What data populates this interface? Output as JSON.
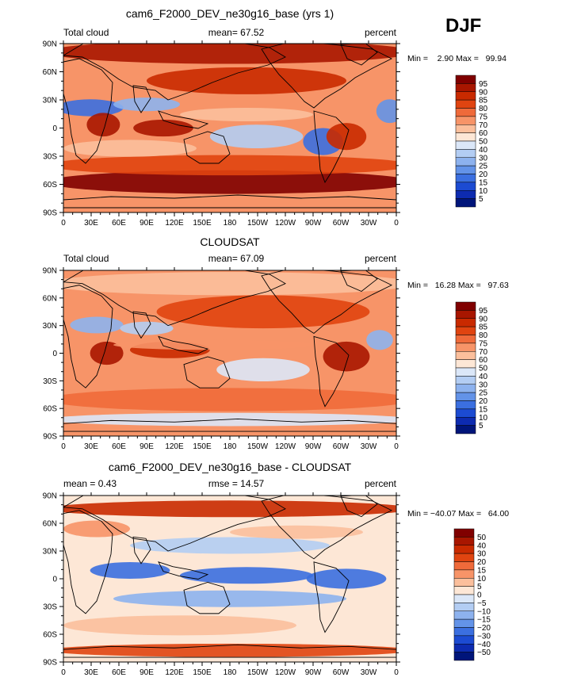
{
  "season": "DJF",
  "x_ticks": [
    "0",
    "30E",
    "60E",
    "90E",
    "120E",
    "150E",
    "180",
    "150W",
    "120W",
    "90W",
    "60W",
    "30W",
    "0"
  ],
  "y_ticks": [
    "90N",
    "60N",
    "30N",
    "0",
    "30S",
    "60S",
    "90S"
  ],
  "panels": [
    {
      "title": "cam6_F2000_DEV_ne30g16_base (yrs 1)",
      "left_label": "Total cloud",
      "center_label": "mean=  67.52",
      "right_label": "percent",
      "stats": "Min =    2.90 Max =   99.94",
      "colorbar": {
        "labels": [
          "95",
          "90",
          "85",
          "80",
          "75",
          "70",
          "60",
          "50",
          "40",
          "30",
          "25",
          "20",
          "15",
          "10",
          "5"
        ],
        "colors": [
          "#800000",
          "#a81600",
          "#c92a00",
          "#e04410",
          "#ef6a3a",
          "#f79468",
          "#fbbf9c",
          "#fde7d6",
          "#dbe7f8",
          "#b3cdf3",
          "#8db2ee",
          "#6393e8",
          "#3b6fe0",
          "#1c4bd2",
          "#0d2bb0",
          "#00157a"
        ]
      }
    },
    {
      "title": "CLOUDSAT",
      "left_label": "Total cloud",
      "center_label": "mean=  67.09",
      "right_label": "percent",
      "stats": "Min =   16.28 Max =   97.63",
      "colorbar": {
        "labels": [
          "95",
          "90",
          "85",
          "80",
          "75",
          "70",
          "60",
          "50",
          "40",
          "30",
          "25",
          "20",
          "15",
          "10",
          "5"
        ],
        "colors": [
          "#800000",
          "#a81600",
          "#c92a00",
          "#e04410",
          "#ef6a3a",
          "#f79468",
          "#fbbf9c",
          "#fde7d6",
          "#dbe7f8",
          "#b3cdf3",
          "#8db2ee",
          "#6393e8",
          "#3b6fe0",
          "#1c4bd2",
          "#0d2bb0",
          "#00157a"
        ]
      }
    },
    {
      "title": "cam6_F2000_DEV_ne30g16_base - CLOUDSAT",
      "left_label": "mean =    0.43",
      "center_label": "rmse =   14.57",
      "right_label": "percent",
      "stats": "Min = −40.07 Max =   64.00",
      "colorbar": {
        "labels": [
          "50",
          "40",
          "30",
          "20",
          "15",
          "10",
          "5",
          "0",
          "−5",
          "−10",
          "−15",
          "−20",
          "−30",
          "−40",
          "−50"
        ],
        "colors": [
          "#800000",
          "#a81600",
          "#c92a00",
          "#e04410",
          "#ef6a3a",
          "#f79468",
          "#fbbf9c",
          "#fde7d6",
          "#dbe7f8",
          "#b3cdf3",
          "#8db2ee",
          "#6393e8",
          "#3b6fe0",
          "#1c4bd2",
          "#0d2bb0",
          "#00157a"
        ]
      }
    }
  ],
  "chart_data": [
    {
      "type": "heatmap",
      "title": "cam6_F2000_DEV_ne30g16_base (yrs 1)",
      "variable": "Total cloud",
      "units": "percent",
      "mean": 67.52,
      "min": 2.9,
      "max": 99.94,
      "levels": [
        5,
        10,
        15,
        20,
        25,
        30,
        40,
        50,
        60,
        70,
        75,
        80,
        85,
        90,
        95
      ],
      "x_ticks": [
        "0",
        "30E",
        "60E",
        "90E",
        "120E",
        "150E",
        "180",
        "150W",
        "120W",
        "90W",
        "60W",
        "30W",
        "0"
      ],
      "y_ticks": [
        "90N",
        "60N",
        "30N",
        "0",
        "30S",
        "60S",
        "90S"
      ],
      "xlim": [
        0,
        360
      ],
      "ylim": [
        -90,
        90
      ]
    },
    {
      "type": "heatmap",
      "title": "CLOUDSAT",
      "variable": "Total cloud",
      "units": "percent",
      "mean": 67.09,
      "min": 16.28,
      "max": 97.63,
      "levels": [
        5,
        10,
        15,
        20,
        25,
        30,
        40,
        50,
        60,
        70,
        75,
        80,
        85,
        90,
        95
      ],
      "x_ticks": [
        "0",
        "30E",
        "60E",
        "90E",
        "120E",
        "150E",
        "180",
        "150W",
        "120W",
        "90W",
        "60W",
        "30W",
        "0"
      ],
      "y_ticks": [
        "90N",
        "60N",
        "30N",
        "0",
        "30S",
        "60S",
        "90S"
      ],
      "xlim": [
        0,
        360
      ],
      "ylim": [
        -90,
        90
      ]
    },
    {
      "type": "heatmap",
      "title": "cam6_F2000_DEV_ne30g16_base - CLOUDSAT",
      "units": "percent",
      "mean": 0.43,
      "rmse": 14.57,
      "min": -40.07,
      "max": 64.0,
      "levels": [
        -50,
        -40,
        -30,
        -20,
        -15,
        -10,
        -5,
        0,
        5,
        10,
        15,
        20,
        30,
        40,
        50
      ],
      "x_ticks": [
        "0",
        "30E",
        "60E",
        "90E",
        "120E",
        "150E",
        "180",
        "150W",
        "120W",
        "90W",
        "60W",
        "30W",
        "0"
      ],
      "y_ticks": [
        "90N",
        "60N",
        "30N",
        "0",
        "30S",
        "60S",
        "90S"
      ],
      "xlim": [
        0,
        360
      ],
      "ylim": [
        -90,
        90
      ]
    }
  ]
}
